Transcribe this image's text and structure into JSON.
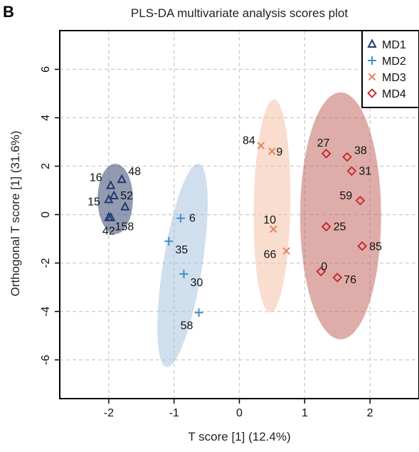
{
  "panel_letter": "B",
  "chart_data": {
    "type": "scatter",
    "title": "PLS-DA multivariate analysis scores plot",
    "xlabel": "T score [1] (12.4%)",
    "ylabel": "Orthogonal T score [1] (31.6%)",
    "xlim": [
      -2.75,
      2.75
    ],
    "ylim": [
      -7.6,
      7.6
    ],
    "x_ticks": [
      -2,
      -1,
      0,
      1,
      2
    ],
    "y_ticks": [
      -6,
      -4,
      -2,
      0,
      2,
      4,
      6
    ],
    "grid": true,
    "legend_position": "top-right",
    "series": [
      {
        "name": "MD1",
        "marker": "triangle",
        "color": "#1f3a6e",
        "ellipse_color": "#3b4875",
        "points": [
          {
            "label": "48",
            "x": -1.8,
            "y": 1.45
          },
          {
            "label": "16",
            "x": -1.97,
            "y": 1.2
          },
          {
            "label": "52",
            "x": -1.92,
            "y": 0.78
          },
          {
            "label": "15",
            "x": -2.0,
            "y": 0.62
          },
          {
            "label": "",
            "x": -1.75,
            "y": 0.32
          },
          {
            "label": "158",
            "x": -1.97,
            "y": -0.12
          },
          {
            "label": "42",
            "x": -2.0,
            "y": -0.12
          }
        ]
      },
      {
        "name": "MD2",
        "marker": "plus",
        "color": "#3d8fc6",
        "ellipse_color": "#a9c4df",
        "points": [
          {
            "label": "6",
            "x": -0.9,
            "y": -0.15
          },
          {
            "label": "35",
            "x": -1.08,
            "y": -1.1
          },
          {
            "label": "30",
            "x": -0.85,
            "y": -2.45
          },
          {
            "label": "58",
            "x": -0.62,
            "y": -4.05
          }
        ]
      },
      {
        "name": "MD3",
        "marker": "cross",
        "color": "#e8825c",
        "ellipse_color": "#f4c1a8",
        "points": [
          {
            "label": "84",
            "x": 0.33,
            "y": 2.85
          },
          {
            "label": "9",
            "x": 0.5,
            "y": 2.62
          },
          {
            "label": "10",
            "x": 0.52,
            "y": -0.6
          },
          {
            "label": "66",
            "x": 0.72,
            "y": -1.5
          }
        ]
      },
      {
        "name": "MD4",
        "marker": "diamond",
        "color": "#c42e2e",
        "ellipse_color": "#c26a62",
        "points": [
          {
            "label": "27",
            "x": 1.33,
            "y": 2.52
          },
          {
            "label": "38",
            "x": 1.65,
            "y": 2.38
          },
          {
            "label": "31",
            "x": 1.72,
            "y": 1.8
          },
          {
            "label": "59",
            "x": 1.85,
            "y": 0.58
          },
          {
            "label": "25",
            "x": 1.33,
            "y": -0.5
          },
          {
            "label": "85",
            "x": 1.88,
            "y": -1.3
          },
          {
            "label": "0",
            "x": 1.25,
            "y": -2.35
          },
          {
            "label": "76",
            "x": 1.5,
            "y": -2.6
          }
        ]
      }
    ],
    "ellipses": [
      {
        "series": "MD1",
        "cx": -1.9,
        "cy": 0.65,
        "rx": 0.27,
        "ry": 1.45,
        "angle": 0
      },
      {
        "series": "MD2",
        "cx": -0.87,
        "cy": -2.1,
        "rx": 0.3,
        "ry": 4.25,
        "angle": 9
      },
      {
        "series": "MD3",
        "cx": 0.5,
        "cy": 0.36,
        "rx": 0.28,
        "ry": 4.4,
        "angle": 1
      },
      {
        "series": "MD4",
        "cx": 1.55,
        "cy": -0.05,
        "rx": 0.62,
        "ry": 5.1,
        "angle": 0
      }
    ]
  }
}
